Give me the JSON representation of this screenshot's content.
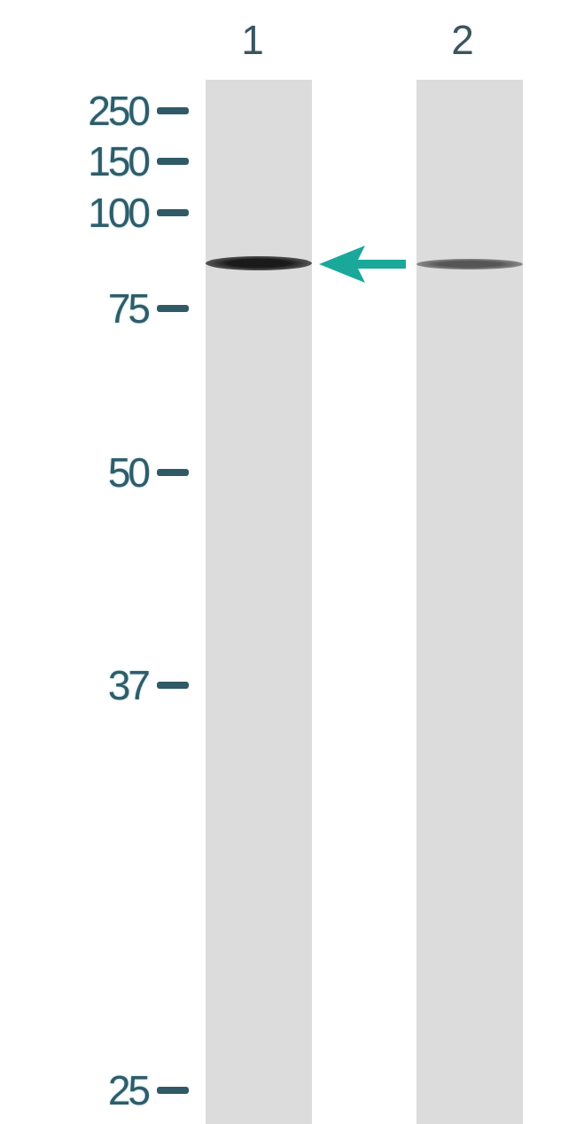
{
  "lanes": [
    {
      "label": "1"
    },
    {
      "label": "2"
    }
  ],
  "markers": [
    {
      "label": "250",
      "kda": 250
    },
    {
      "label": "150",
      "kda": 150
    },
    {
      "label": "100",
      "kda": 100
    },
    {
      "label": "75",
      "kda": 75
    },
    {
      "label": "50",
      "kda": 50
    },
    {
      "label": "37",
      "kda": 37
    },
    {
      "label": "25",
      "kda": 25
    }
  ],
  "colors": {
    "marker_text": "#2f5c68",
    "arrow": "#1aa89a",
    "lane_background": "#dcdcdc",
    "band": "#222222"
  },
  "arrow_icon": "left-arrow-icon"
}
